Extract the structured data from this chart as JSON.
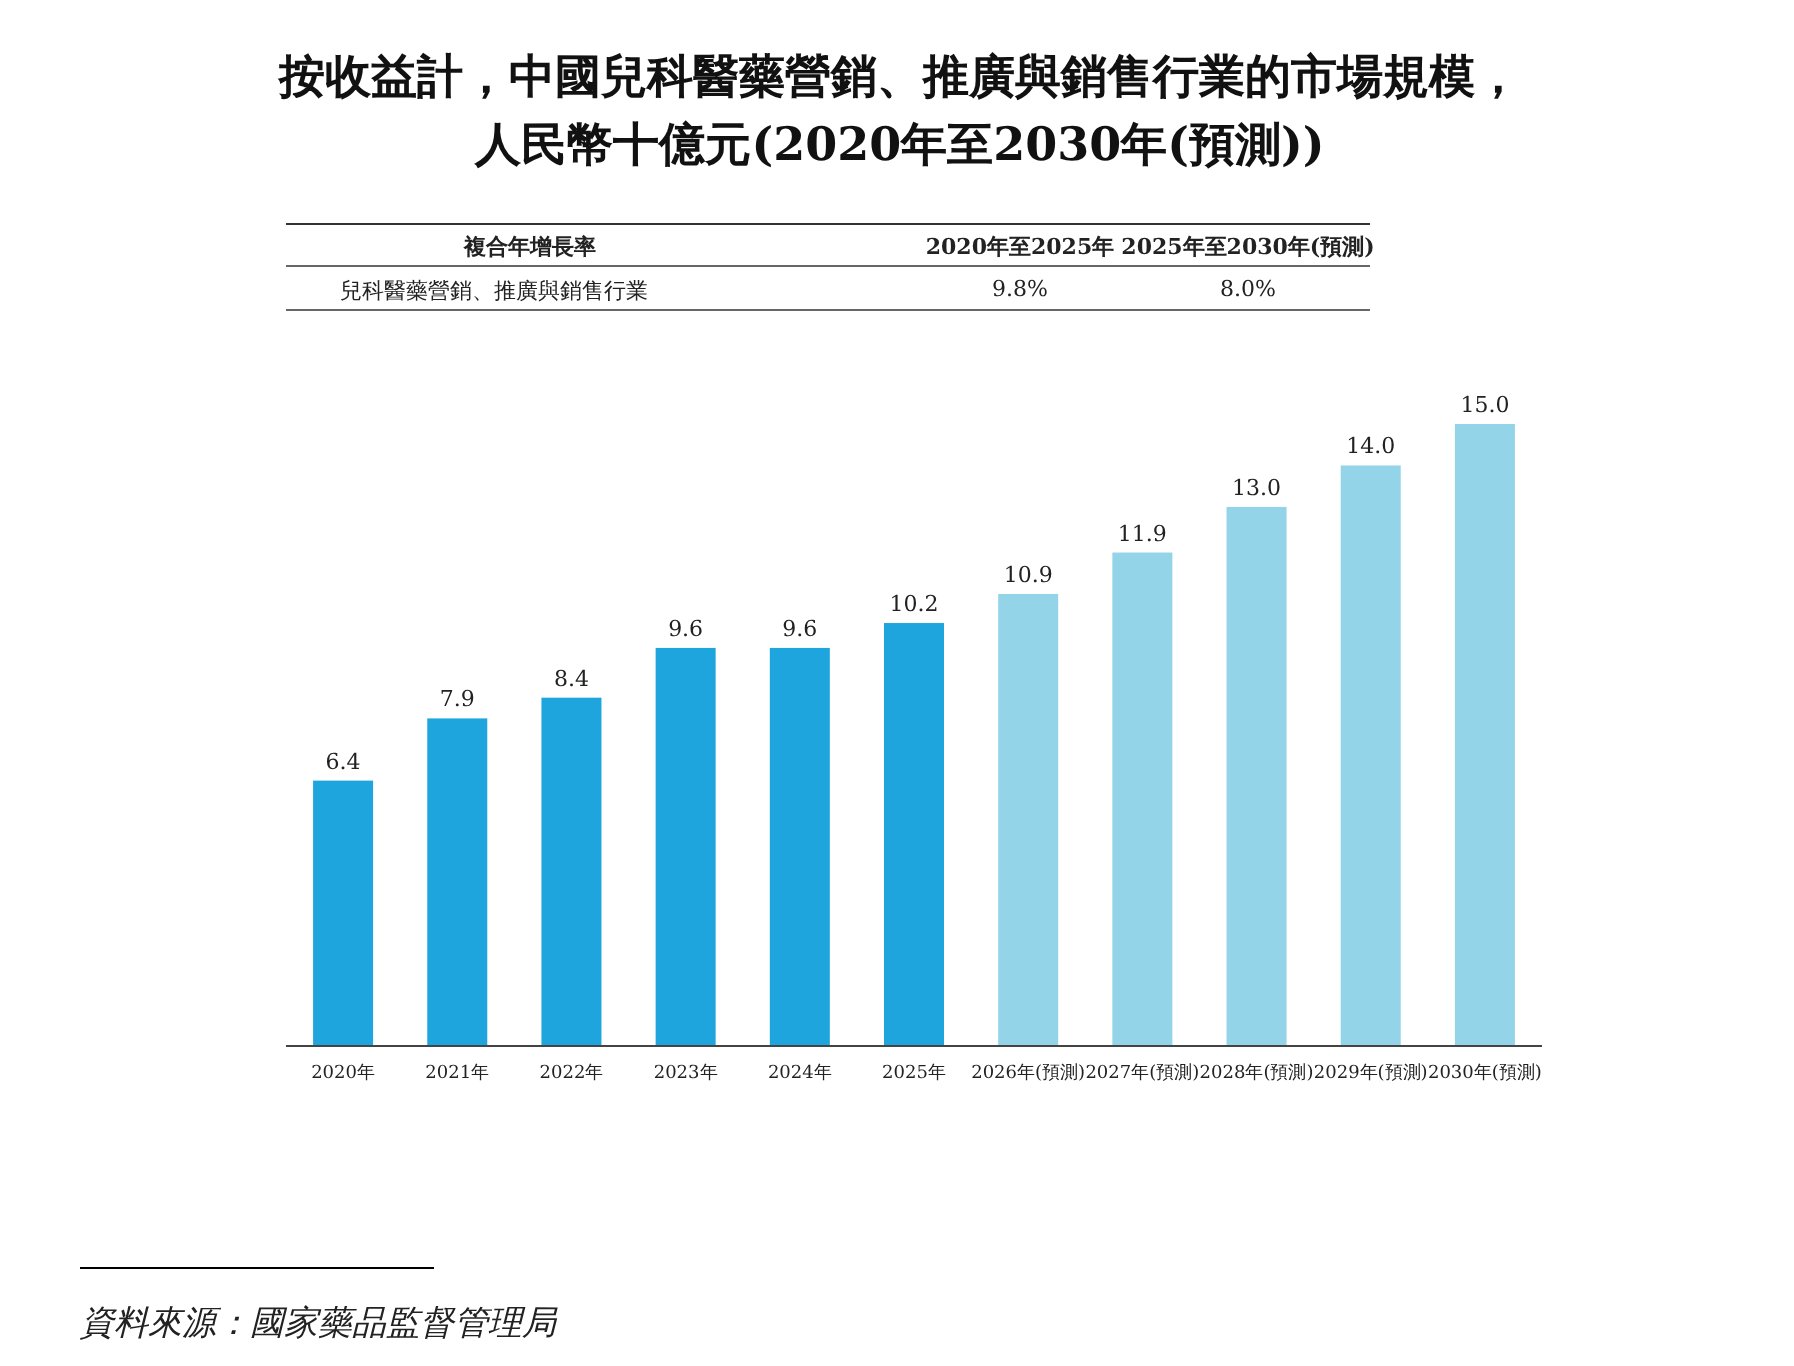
{
  "chart_data": {
    "type": "bar",
    "title": "按收益計，中國兒科醫藥營銷、推廣與銷售行業的市場規模，人民幣十億元(2020年至2030年(預測))",
    "categories": [
      "2020年",
      "2021年",
      "2022年",
      "2023年",
      "2024年",
      "2025年",
      "2026年(預測)",
      "2027年(預測)",
      "2028年(預測)",
      "2029年(預測)",
      "2030年(預測)"
    ],
    "values": [
      6.4,
      7.9,
      8.4,
      9.6,
      9.6,
      10.2,
      10.9,
      11.9,
      13.0,
      14.0,
      15.0
    ],
    "value_labels": [
      "6.4",
      "7.9",
      "8.4",
      "9.6",
      "9.6",
      "10.2",
      "10.9",
      "11.9",
      "13.0",
      "14.0",
      "15.0"
    ],
    "colors": [
      "#1ea5de",
      "#1ea5de",
      "#1ea5de",
      "#1ea5de",
      "#1ea5de",
      "#1ea5de",
      "#93d4e8",
      "#93d4e8",
      "#93d4e8",
      "#93d4e8",
      "#93d4e8"
    ],
    "annotations": [
      "複合年增長率",
      "2020年至2025年",
      "2025年至2030年(預測)",
      "兒科醫藥營銷、推廣與銷售行業",
      "9.8%",
      "8.0%",
      "資料來源：國家藥品監督管理局"
    ]
  }
}
